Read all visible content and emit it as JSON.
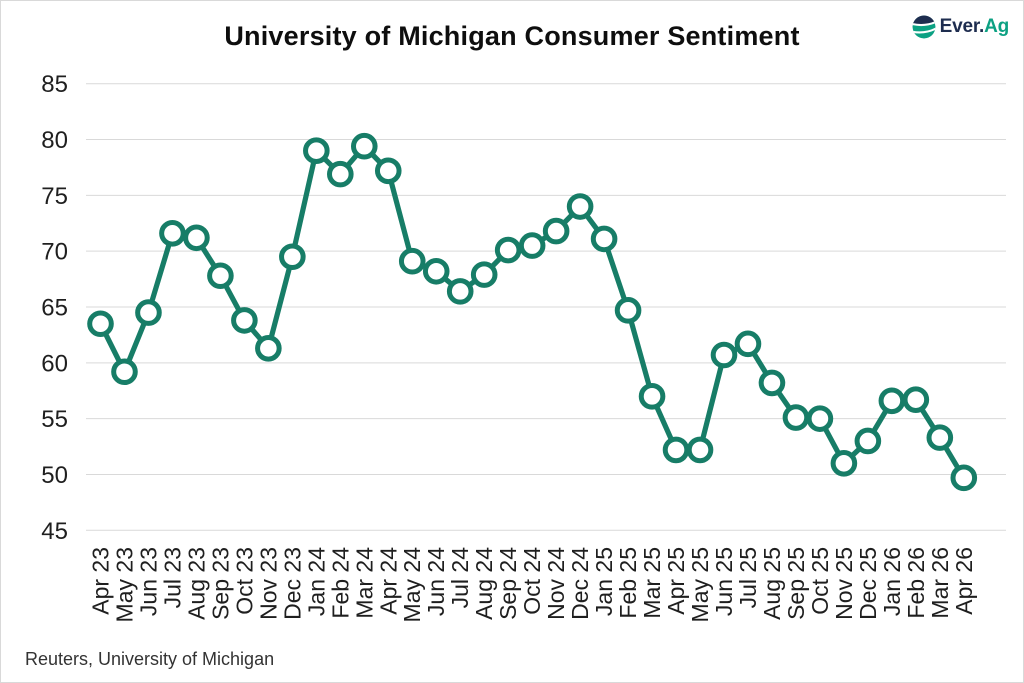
{
  "header": {
    "title": "University of Michigan Consumer Sentiment",
    "logo": {
      "text_primary": "Ever.",
      "text_accent": "Ag",
      "primary_color": "#1e2d4f",
      "accent_color": "#0ca183"
    }
  },
  "chart_data": {
    "type": "line",
    "title": "University of Michigan Consumer Sentiment",
    "x": [
      "Apr 23",
      "May 23",
      "Jun 23",
      "Jul 23",
      "Aug 23",
      "Sep 23",
      "Oct 23",
      "Nov 23",
      "Dec 23",
      "Jan 24",
      "Feb 24",
      "Mar 24",
      "Apr 24",
      "May 24",
      "Jun 24",
      "Jul 24",
      "Aug 24",
      "Sep 24",
      "Oct 24",
      "Nov 24",
      "Dec 24",
      "Jan 25",
      "Feb 25",
      "Mar 25",
      "Apr 25",
      "May 25",
      "Jun 25",
      "Jul 25",
      "Aug 25",
      "Sep 25",
      "Oct 25",
      "Nov 25",
      "Dec 25",
      "Jan 26",
      "Feb 26",
      "Mar 26",
      "Apr 26"
    ],
    "series": [
      {
        "name": "University of Michigan Consumer Sentiment",
        "values": [
          63.5,
          59.2,
          64.5,
          71.6,
          71.2,
          67.8,
          63.8,
          61.3,
          69.5,
          79.0,
          76.9,
          79.4,
          77.2,
          69.1,
          68.2,
          66.4,
          67.9,
          70.1,
          70.5,
          71.8,
          74.0,
          71.1,
          64.7,
          57.0,
          52.2,
          52.2,
          60.7,
          61.7,
          58.2,
          55.1,
          55.0,
          51.0,
          53.0,
          56.6,
          56.7,
          53.3,
          49.7
        ]
      }
    ],
    "xlabel": "",
    "ylabel": "",
    "ylim": [
      45,
      85
    ],
    "yticks": [
      85,
      80,
      75,
      70,
      65,
      60,
      55,
      50,
      45
    ],
    "grid": "horizontal",
    "gridline_color": "#d9d9d9",
    "legend": "none",
    "line_color": "#177d67",
    "marker": "open-circle",
    "marker_fill": "#ffffff",
    "tick_label_color": "#1f1f1f"
  },
  "footer": {
    "source": "Reuters, University of Michigan"
  }
}
